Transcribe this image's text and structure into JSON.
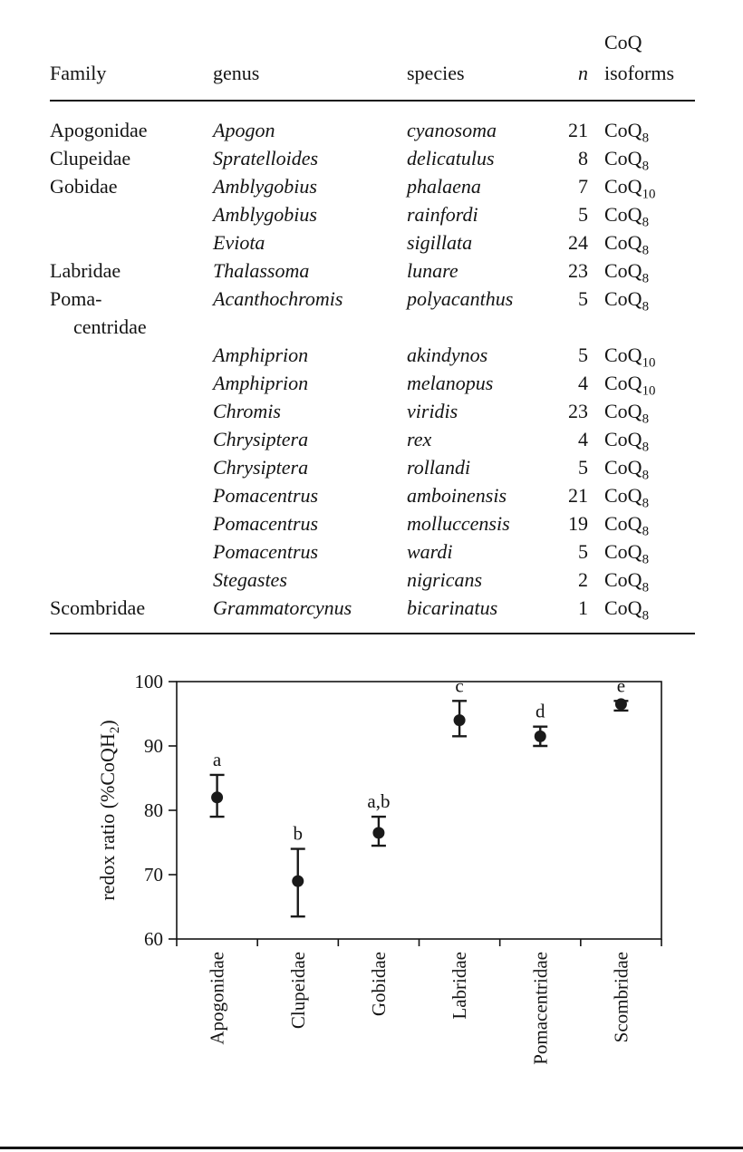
{
  "colors": {
    "ink": "#141414",
    "marker": "#1a1a1a",
    "background": "#ffffff"
  },
  "table": {
    "headers": [
      "Family",
      "genus",
      "species",
      "n",
      "CoQ\nisoforms"
    ],
    "rows": [
      {
        "family": "Apogonidae",
        "genus": "Apogon",
        "species": "cyanosoma",
        "n": 21,
        "isoform": "CoQ8"
      },
      {
        "family": "Clupeidae",
        "genus": "Spratelloides",
        "species": "delicatulus",
        "n": 8,
        "isoform": "CoQ8"
      },
      {
        "family": "Gobidae",
        "genus": "Amblygobius",
        "species": "phalaena",
        "n": 7,
        "isoform": "CoQ10"
      },
      {
        "family": "",
        "genus": "Amblygobius",
        "species": "rainfordi",
        "n": 5,
        "isoform": "CoQ8"
      },
      {
        "family": "",
        "genus": "Eviota",
        "species": "sigillata",
        "n": 24,
        "isoform": "CoQ8"
      },
      {
        "family": "Labridae",
        "genus": "Thalassoma",
        "species": "lunare",
        "n": 23,
        "isoform": "CoQ8"
      },
      {
        "family": "Poma-\ncentridae",
        "genus": "Acanthochromis",
        "species": "polyacanthus",
        "n": 5,
        "isoform": "CoQ8"
      },
      {
        "family": "",
        "genus": "Amphiprion",
        "species": "akindynos",
        "n": 5,
        "isoform": "CoQ10"
      },
      {
        "family": "",
        "genus": "Amphiprion",
        "species": "melanopus",
        "n": 4,
        "isoform": "CoQ10"
      },
      {
        "family": "",
        "genus": "Chromis",
        "species": "viridis",
        "n": 23,
        "isoform": "CoQ8"
      },
      {
        "family": "",
        "genus": "Chrysiptera",
        "species": "rex",
        "n": 4,
        "isoform": "CoQ8"
      },
      {
        "family": "",
        "genus": "Chrysiptera",
        "species": "rollandi",
        "n": 5,
        "isoform": "CoQ8"
      },
      {
        "family": "",
        "genus": "Pomacentrus",
        "species": "amboinensis",
        "n": 21,
        "isoform": "CoQ8"
      },
      {
        "family": "",
        "genus": "Pomacentrus",
        "species": "molluccensis",
        "n": 19,
        "isoform": "CoQ8"
      },
      {
        "family": "",
        "genus": "Pomacentrus",
        "species": "wardi",
        "n": 5,
        "isoform": "CoQ8"
      },
      {
        "family": "",
        "genus": "Stegastes",
        "species": "nigricans",
        "n": 2,
        "isoform": "CoQ8"
      },
      {
        "family": "Scombridae",
        "genus": "Grammatorcynus",
        "species": "bicarinatus",
        "n": 1,
        "isoform": "CoQ8"
      }
    ]
  },
  "chart_data": {
    "type": "scatter",
    "title": "",
    "xlabel": "",
    "ylabel": "redox ratio (%CoQH2)",
    "ylim": [
      60,
      100
    ],
    "yticks": [
      60,
      70,
      80,
      90,
      100
    ],
    "grid": false,
    "legend": false,
    "marker": "filled-circle",
    "color": "#1a1a1a",
    "categories": [
      "Apogonidae",
      "Clupeidae",
      "Gobidae",
      "Labridae",
      "Pomacentridae",
      "Scombridae"
    ],
    "values": [
      82,
      69,
      76.5,
      94,
      91.5,
      96.5
    ],
    "error_low": [
      79,
      63.5,
      74.5,
      91.5,
      90,
      95.5
    ],
    "error_high": [
      85.5,
      74,
      79,
      97,
      93,
      97
    ],
    "point_labels": [
      "a",
      "b",
      "a,b",
      "c",
      "d",
      "e"
    ]
  }
}
